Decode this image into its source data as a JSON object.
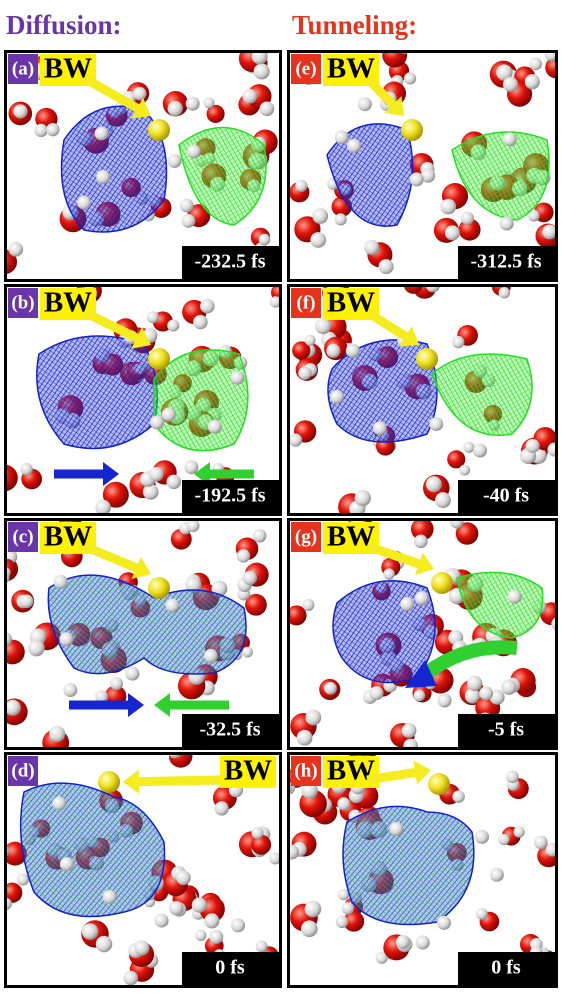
{
  "headers": {
    "left": "Diffusion:",
    "right": "Tunneling:"
  },
  "panels": [
    {
      "label": "(a)",
      "tag": "BW",
      "time": "-232.5 fs"
    },
    {
      "label": "(e)",
      "tag": "BW",
      "time": "-312.5 fs"
    },
    {
      "label": "(b)",
      "tag": "BW",
      "time": "-192.5 fs"
    },
    {
      "label": "(f)",
      "tag": "BW",
      "time": "-40 fs"
    },
    {
      "label": "(c)",
      "tag": "BW",
      "time": "-32.5 fs"
    },
    {
      "label": "(g)",
      "tag": "BW",
      "time": "-5 fs"
    },
    {
      "label": "(d)",
      "tag": "BW",
      "time": "0 fs"
    },
    {
      "label": "(h)",
      "tag": "BW",
      "time": "0 fs"
    }
  ]
}
